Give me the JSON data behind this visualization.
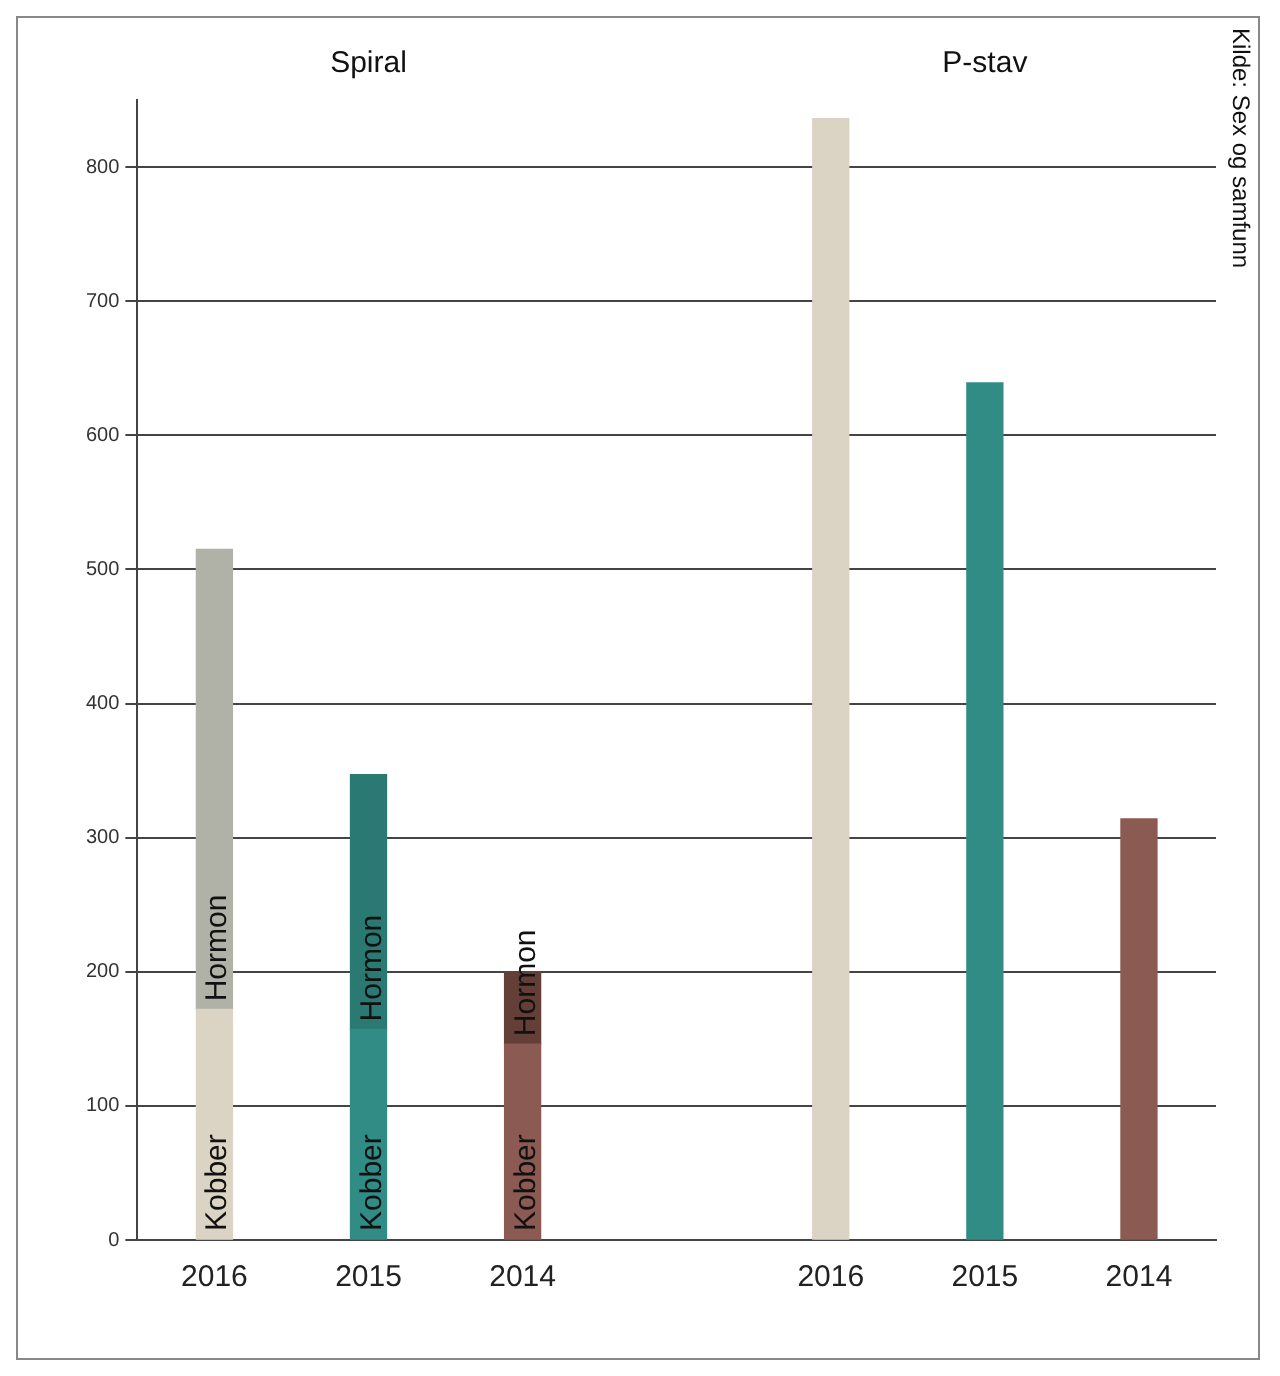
{
  "chart_data": {
    "type": "bar",
    "stacked": true,
    "categories": [
      "2016",
      "2015",
      "2014",
      null,
      "2016",
      "2015",
      "2014"
    ],
    "series": [
      {
        "name": "Kobber",
        "colors": [
          "#dbd4c4",
          "#328c86",
          "#8b5a52",
          null,
          null,
          null,
          null
        ],
        "values": [
          172,
          157,
          146,
          null,
          null,
          null,
          null
        ]
      },
      {
        "name": "Hormon",
        "colors": [
          "#b0b1a7",
          "#2a7a73",
          "#633f38",
          null,
          null,
          null,
          null
        ],
        "values": [
          343,
          190,
          54,
          null,
          null,
          null,
          null
        ]
      },
      {
        "colors": [
          null,
          null,
          null,
          null,
          "#dbd4c4",
          "#328c86",
          "#8b5a52"
        ],
        "values": [
          null,
          null,
          null,
          null,
          836,
          639,
          314
        ]
      }
    ],
    "ylim": [
      0,
      850
    ],
    "yticks": [
      0,
      100,
      200,
      300,
      400,
      500,
      600,
      700,
      800
    ],
    "grid": "y",
    "legend": false,
    "annotations": [
      "Spiral",
      "P-stav",
      "Kilde: Sex og samfunn"
    ]
  }
}
